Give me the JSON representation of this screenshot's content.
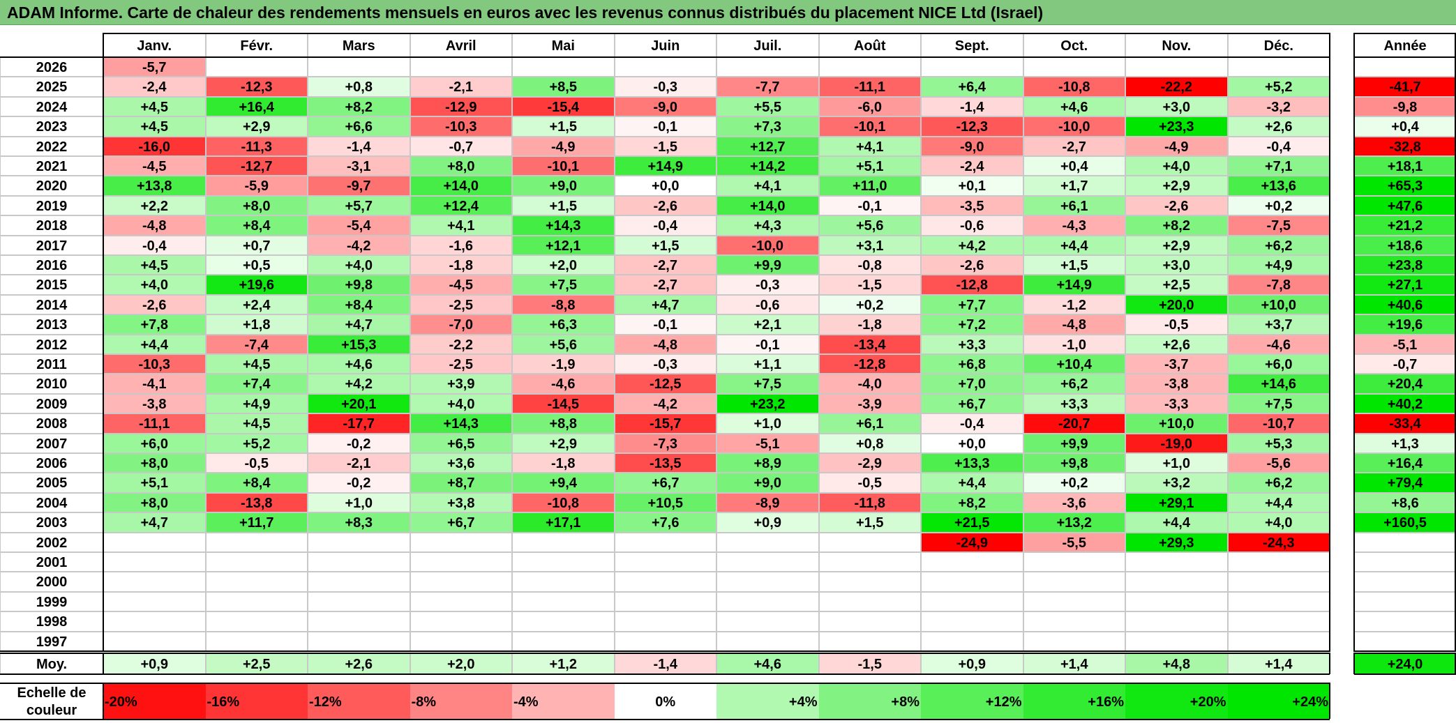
{
  "title": "ADAM Informe. Carte de chaleur des rendements mensuels en euros avec les revenus connus distribués du placement NICE Ltd (Israel)",
  "colors": {
    "title_bg": "#82c87e",
    "neg_max": "#ff0000",
    "neutral": "#ffffff",
    "pos_max": "#00e600"
  },
  "chart_data": {
    "type": "heatmap",
    "title": "ADAM Informe. Carte de chaleur des rendements mensuels en euros avec les revenus connus distribués du placement NICE Ltd (Israel)",
    "months": [
      "Janv.",
      "Févr.",
      "Mars",
      "Avril",
      "Mai",
      "Juin",
      "Juil.",
      "Août",
      "Sept.",
      "Oct.",
      "Nov.",
      "Déc."
    ],
    "year_header": "Année",
    "rows": [
      {
        "year": "2026",
        "values": [
          "-5,7",
          "",
          "",
          "",
          "",
          "",
          "",
          "",
          "",
          "",
          "",
          ""
        ],
        "annual": ""
      },
      {
        "year": "2025",
        "values": [
          "-2,4",
          "-12,3",
          "+0,8",
          "-2,1",
          "+8,5",
          "-0,3",
          "-7,7",
          "-11,1",
          "+6,4",
          "-10,8",
          "-22,2",
          "+5,2"
        ],
        "annual": "-41,7"
      },
      {
        "year": "2024",
        "values": [
          "+4,5",
          "+16,4",
          "+8,2",
          "-12,9",
          "-15,4",
          "-9,0",
          "+5,5",
          "-6,0",
          "-1,4",
          "+4,6",
          "+3,0",
          "-3,2"
        ],
        "annual": "-9,8"
      },
      {
        "year": "2023",
        "values": [
          "+4,5",
          "+2,9",
          "+6,6",
          "-10,3",
          "+1,5",
          "-0,1",
          "+7,3",
          "-10,1",
          "-12,3",
          "-10,0",
          "+23,3",
          "+2,6"
        ],
        "annual": "+0,4"
      },
      {
        "year": "2022",
        "values": [
          "-16,0",
          "-11,3",
          "-1,4",
          "-0,7",
          "-4,9",
          "-1,5",
          "+12,7",
          "+4,1",
          "-9,0",
          "-2,7",
          "-4,9",
          "-0,4"
        ],
        "annual": "-32,8"
      },
      {
        "year": "2021",
        "values": [
          "-4,5",
          "-12,7",
          "-3,1",
          "+8,0",
          "-10,1",
          "+14,9",
          "+14,2",
          "+5,1",
          "-2,4",
          "+0,4",
          "+4,0",
          "+7,1"
        ],
        "annual": "+18,1"
      },
      {
        "year": "2020",
        "values": [
          "+13,8",
          "-5,9",
          "-9,7",
          "+14,0",
          "+9,0",
          "+0,0",
          "+4,1",
          "+11,0",
          "+0,1",
          "+1,7",
          "+2,9",
          "+13,6"
        ],
        "annual": "+65,3"
      },
      {
        "year": "2019",
        "values": [
          "+2,2",
          "+8,0",
          "+5,7",
          "+12,4",
          "+1,5",
          "-2,6",
          "+14,0",
          "-0,1",
          "-3,5",
          "+6,1",
          "-2,6",
          "+0,2"
        ],
        "annual": "+47,6"
      },
      {
        "year": "2018",
        "values": [
          "-4,8",
          "+8,4",
          "-5,4",
          "+4,1",
          "+14,3",
          "-0,4",
          "+4,3",
          "+5,6",
          "-0,6",
          "-4,3",
          "+8,2",
          "-7,5"
        ],
        "annual": "+21,2"
      },
      {
        "year": "2017",
        "values": [
          "-0,4",
          "+0,7",
          "-4,2",
          "-1,6",
          "+12,1",
          "+1,5",
          "-10,0",
          "+3,1",
          "+4,2",
          "+4,4",
          "+2,9",
          "+6,2"
        ],
        "annual": "+18,6"
      },
      {
        "year": "2016",
        "values": [
          "+4,5",
          "+0,5",
          "+4,0",
          "-1,8",
          "+2,0",
          "-2,7",
          "+9,9",
          "-0,8",
          "-2,6",
          "+1,5",
          "+3,0",
          "+4,9"
        ],
        "annual": "+23,8"
      },
      {
        "year": "2015",
        "values": [
          "+4,0",
          "+19,6",
          "+9,8",
          "-4,5",
          "+7,5",
          "-2,7",
          "-0,3",
          "-1,5",
          "-12,8",
          "+14,9",
          "+2,5",
          "-7,8"
        ],
        "annual": "+27,1"
      },
      {
        "year": "2014",
        "values": [
          "-2,6",
          "+2,4",
          "+8,4",
          "-2,5",
          "-8,8",
          "+4,7",
          "-0,6",
          "+0,2",
          "+7,7",
          "-1,2",
          "+20,0",
          "+10,0"
        ],
        "annual": "+40,6"
      },
      {
        "year": "2013",
        "values": [
          "+7,8",
          "+1,8",
          "+4,7",
          "-7,0",
          "+6,3",
          "-0,1",
          "+2,1",
          "-1,8",
          "+7,2",
          "-4,8",
          "-0,5",
          "+3,7"
        ],
        "annual": "+19,6"
      },
      {
        "year": "2012",
        "values": [
          "+4,4",
          "-7,4",
          "+15,3",
          "-2,2",
          "+5,6",
          "-4,8",
          "-0,1",
          "-13,4",
          "+3,3",
          "-1,0",
          "+2,6",
          "-4,6"
        ],
        "annual": "-5,1"
      },
      {
        "year": "2011",
        "values": [
          "-10,3",
          "+4,5",
          "+4,6",
          "-2,5",
          "-1,9",
          "-0,3",
          "+1,1",
          "-12,8",
          "+6,8",
          "+10,4",
          "-3,7",
          "+6,0"
        ],
        "annual": "-0,7"
      },
      {
        "year": "2010",
        "values": [
          "-4,1",
          "+7,4",
          "+4,2",
          "+3,9",
          "-4,6",
          "-12,5",
          "+7,5",
          "-4,0",
          "+7,0",
          "+6,2",
          "-3,8",
          "+14,6"
        ],
        "annual": "+20,4"
      },
      {
        "year": "2009",
        "values": [
          "-3,8",
          "+4,9",
          "+20,1",
          "+4,0",
          "-14,5",
          "-4,2",
          "+23,2",
          "-3,9",
          "+6,7",
          "+3,3",
          "-3,3",
          "+7,5"
        ],
        "annual": "+40,2"
      },
      {
        "year": "2008",
        "values": [
          "-11,1",
          "+4,5",
          "-17,7",
          "+14,3",
          "+8,8",
          "-15,7",
          "+1,0",
          "+6,1",
          "-0,4",
          "-20,7",
          "+10,0",
          "-10,7"
        ],
        "annual": "-33,4"
      },
      {
        "year": "2007",
        "values": [
          "+6,0",
          "+5,2",
          "-0,2",
          "+6,5",
          "+2,9",
          "-7,3",
          "-5,1",
          "+0,8",
          "+0,0",
          "+9,9",
          "-19,0",
          "+5,3"
        ],
        "annual": "+1,3"
      },
      {
        "year": "2006",
        "values": [
          "+8,0",
          "-0,5",
          "-2,1",
          "+3,6",
          "-1,8",
          "-13,5",
          "+8,9",
          "-2,9",
          "+13,3",
          "+9,8",
          "+1,0",
          "-5,6"
        ],
        "annual": "+16,4"
      },
      {
        "year": "2005",
        "values": [
          "+5,1",
          "+8,4",
          "-0,2",
          "+8,7",
          "+9,4",
          "+6,7",
          "+9,0",
          "-0,5",
          "+4,4",
          "+0,2",
          "+3,2",
          "+6,2"
        ],
        "annual": "+79,4"
      },
      {
        "year": "2004",
        "values": [
          "+8,0",
          "-13,8",
          "+1,0",
          "+3,8",
          "-10,8",
          "+10,5",
          "-8,9",
          "-11,8",
          "+8,2",
          "-3,6",
          "+29,1",
          "+4,4"
        ],
        "annual": "+8,6"
      },
      {
        "year": "2003",
        "values": [
          "+4,7",
          "+11,7",
          "+8,3",
          "+6,7",
          "+17,1",
          "+7,6",
          "+0,9",
          "+1,5",
          "+21,5",
          "+13,2",
          "+4,4",
          "+4,0"
        ],
        "annual": "+160,5"
      },
      {
        "year": "2002",
        "values": [
          "",
          "",
          "",
          "",
          "",
          "",
          "",
          "",
          "-24,9",
          "-5,5",
          "+29,3",
          "-24,3"
        ],
        "annual": ""
      },
      {
        "year": "2001",
        "values": [
          "",
          "",
          "",
          "",
          "",
          "",
          "",
          "",
          "",
          "",
          "",
          ""
        ],
        "annual": ""
      },
      {
        "year": "2000",
        "values": [
          "",
          "",
          "",
          "",
          "",
          "",
          "",
          "",
          "",
          "",
          "",
          ""
        ],
        "annual": ""
      },
      {
        "year": "1999",
        "values": [
          "",
          "",
          "",
          "",
          "",
          "",
          "",
          "",
          "",
          "",
          "",
          ""
        ],
        "annual": ""
      },
      {
        "year": "1998",
        "values": [
          "",
          "",
          "",
          "",
          "",
          "",
          "",
          "",
          "",
          "",
          "",
          ""
        ],
        "annual": ""
      },
      {
        "year": "1997",
        "values": [
          "",
          "",
          "",
          "",
          "",
          "",
          "",
          "",
          "",
          "",
          "",
          ""
        ],
        "annual": ""
      }
    ],
    "average": {
      "label": "Moy.",
      "values": [
        "+0,9",
        "+2,5",
        "+2,6",
        "+2,0",
        "+1,2",
        "-1,4",
        "+4,6",
        "-1,5",
        "+0,9",
        "+1,4",
        "+4,8",
        "+1,4"
      ],
      "annual": "+24,0"
    },
    "scale": {
      "title_line1": "Echelle de",
      "title_line2": "couleur",
      "steps": [
        {
          "label": "-20%",
          "value": -20
        },
        {
          "label": "-16%",
          "value": -16
        },
        {
          "label": "-12%",
          "value": -12
        },
        {
          "label": "-8%",
          "value": -8
        },
        {
          "label": "-4%",
          "value": -4
        },
        {
          "label": "0%",
          "value": 0
        },
        {
          "label": "+4%",
          "value": 4
        },
        {
          "label": "+8%",
          "value": 8
        },
        {
          "label": "+12%",
          "value": 12
        },
        {
          "label": "+16%",
          "value": 16
        },
        {
          "label": "+20%",
          "value": 20
        },
        {
          "label": "+24%",
          "value": 24
        }
      ]
    }
  }
}
